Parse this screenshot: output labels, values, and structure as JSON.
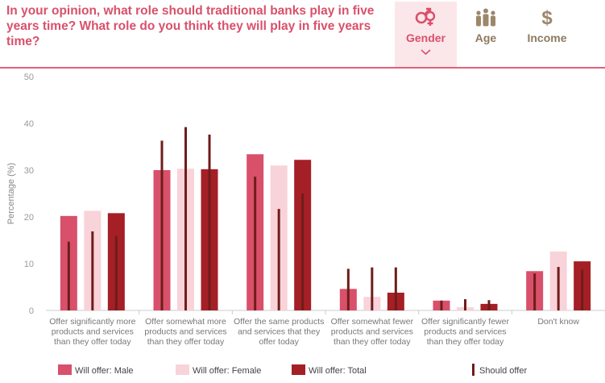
{
  "title": "In your opinion, what role should traditional banks play in five years time? What role do you think they will play in five years time?",
  "tabs": [
    {
      "label": "Gender",
      "icon": "gender-icon",
      "active": true
    },
    {
      "label": "Age",
      "icon": "people-icon",
      "active": false
    },
    {
      "label": "Income",
      "icon": "dollar-icon",
      "active": false
    }
  ],
  "colors": {
    "male": "#d9506b",
    "female": "#f8d3d9",
    "total": "#a51f26",
    "should": "#6e1d1a",
    "accent": "#e3607a"
  },
  "chart_data": {
    "type": "bar",
    "ylabel": "Percentage (%)",
    "ylim": [
      0,
      50
    ],
    "yticks": [
      0,
      10,
      20,
      30,
      40,
      50
    ],
    "categories": [
      [
        "Offer significantly more",
        "products and services",
        "than they offer today"
      ],
      [
        "Offer somewhat more",
        "products and services",
        "than they offer today"
      ],
      [
        "Offer the same products",
        "and services that they",
        "offer today"
      ],
      [
        "Offer somewhat fewer",
        "products and services",
        "than they offer today"
      ],
      [
        "Offer significantly fewer",
        "products and services",
        "than they offer today"
      ],
      [
        "Don't know"
      ]
    ],
    "series": [
      {
        "name": "Will offer: Male",
        "values": [
          20.2,
          30.0,
          33.4,
          4.6,
          2.1,
          8.4
        ]
      },
      {
        "name": "Will offer: Female",
        "values": [
          21.3,
          30.3,
          31.0,
          2.9,
          0.7,
          12.6
        ]
      },
      {
        "name": "Will offer: Total",
        "values": [
          20.8,
          30.2,
          32.2,
          3.8,
          1.4,
          10.5
        ]
      }
    ],
    "should_offer": {
      "name": "Should offer",
      "values": [
        [
          14.7,
          36.3,
          28.6,
          8.9,
          2.1,
          7.9
        ],
        [
          16.9,
          39.2,
          21.7,
          9.2,
          2.4,
          9.3
        ],
        [
          15.9,
          37.6,
          25.0,
          9.2,
          2.2,
          8.7
        ]
      ]
    }
  }
}
